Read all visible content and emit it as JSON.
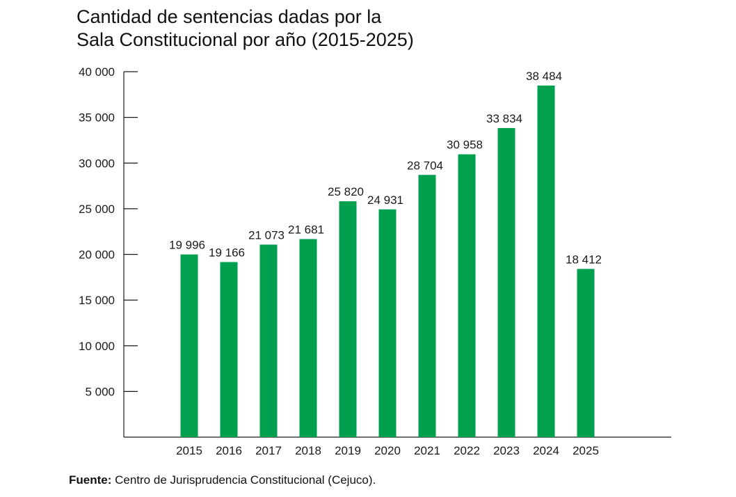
{
  "chart_data": {
    "type": "bar",
    "title_lines": [
      "Cantidad de sentencias dadas por la",
      "Sala Constitucional por año (2015-2025)"
    ],
    "categories": [
      "2015",
      "2016",
      "2017",
      "2018",
      "2019",
      "2020",
      "2021",
      "2022",
      "2023",
      "2024",
      "2025"
    ],
    "values": [
      19996,
      19166,
      21073,
      21681,
      25820,
      24931,
      28704,
      30958,
      33834,
      38484,
      18412
    ],
    "value_labels": [
      "19 996",
      "19 166",
      "21 073",
      "21 681",
      "25 820",
      "24 931",
      "28 704",
      "30 958",
      "33 834",
      "38 484",
      "18 412"
    ],
    "y_ticks": [
      5000,
      10000,
      15000,
      20000,
      25000,
      30000,
      35000,
      40000
    ],
    "y_tick_labels": [
      "5 000",
      "10 000",
      "15 000",
      "20 000",
      "25 000",
      "30 000",
      "35 000",
      "40 000"
    ],
    "ylim": [
      0,
      40000
    ],
    "xlabel": "",
    "ylabel": "",
    "grid": false,
    "bar_color": "#00a04f",
    "axis_color": "#1a1a1a"
  },
  "source": {
    "label": "Fuente:",
    "text": " Centro de Jurisprudencia Constitucional (Cejuco)."
  }
}
